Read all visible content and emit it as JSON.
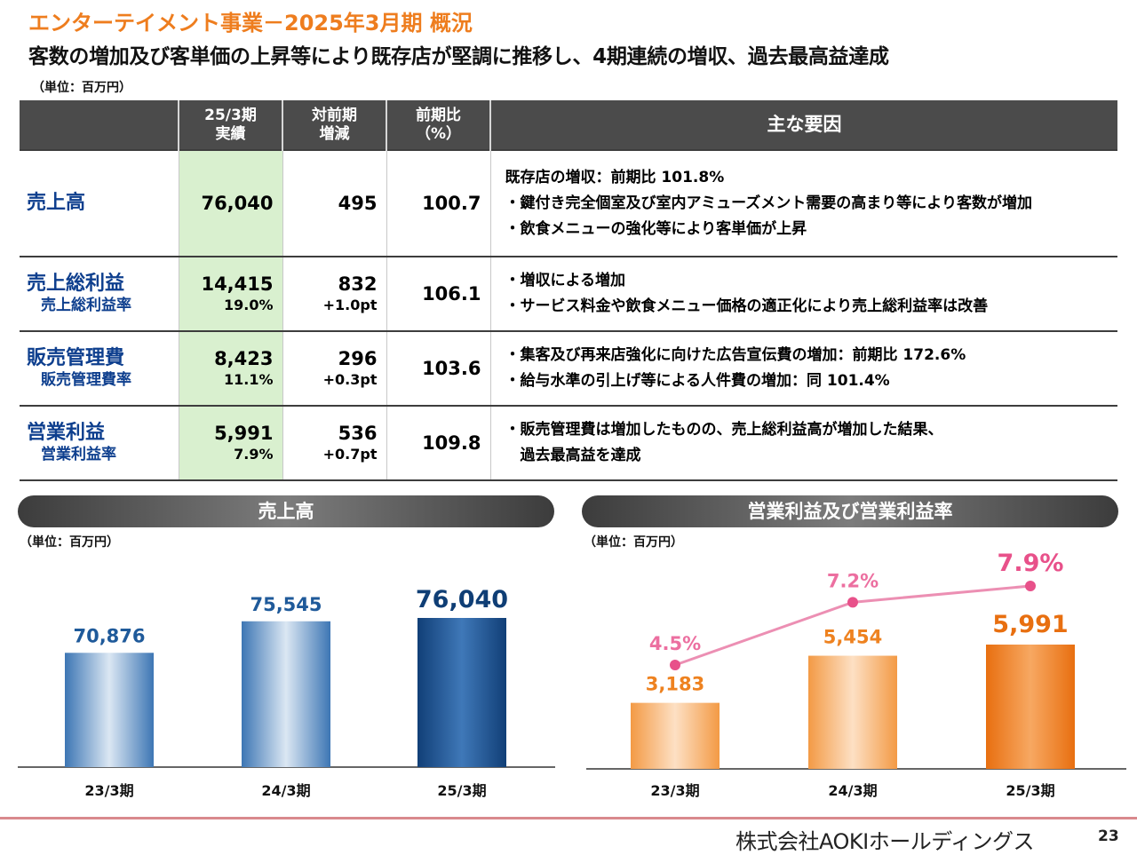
{
  "header": {
    "title": "エンターテイメント事業－2025年3月期 概況",
    "subtitle": "客数の増加及び客単価の上昇等により既存店が堅調に推移し、4期連続の増収、過去最高益達成"
  },
  "unit_label": "（単位：百万円）",
  "table": {
    "headers": {
      "actual": [
        "25/3期",
        "実績"
      ],
      "yoy_change": [
        "対前期",
        "増減"
      ],
      "yoy_ratio": [
        "前期比",
        "（%）"
      ],
      "reasons": "主な要因"
    },
    "rows": [
      {
        "item": "売上高",
        "sub_item": "",
        "actual": "76,040",
        "actual_sub": "",
        "change": "495",
        "change_sub": "",
        "ratio": "100.7",
        "reasons": [
          "既存店の増収：前期比 101.8%",
          "・鍵付き完全個室及び室内アミューズメント需要の高まり等により客数が増加",
          "・飲食メニューの強化等により客単価が上昇"
        ]
      },
      {
        "item": "売上総利益",
        "sub_item": "売上総利益率",
        "actual": "14,415",
        "actual_sub": "19.0%",
        "change": "832",
        "change_sub": "+1.0pt",
        "ratio": "106.1",
        "reasons": [
          "・増収による増加",
          "・サービス料金や飲食メニュー価格の適正化により売上総利益率は改善"
        ]
      },
      {
        "item": "販売管理費",
        "sub_item": "販売管理費率",
        "actual": "8,423",
        "actual_sub": "11.1%",
        "change": "296",
        "change_sub": "+0.3pt",
        "ratio": "103.6",
        "reasons": [
          "・集客及び再来店強化に向けた広告宣伝費の増加：前期比 172.6%",
          "・給与水準の引上げ等による人件費の増加：同 101.4%"
        ]
      },
      {
        "item": "営業利益",
        "sub_item": "営業利益率",
        "actual": "5,991",
        "actual_sub": "7.9%",
        "change": "536",
        "change_sub": "+0.7pt",
        "ratio": "109.8",
        "reasons": [
          "・販売管理費は増加したものの、売上総利益高が増加した結果、",
          "　過去最高益を達成"
        ]
      }
    ]
  },
  "chart_data": [
    {
      "type": "bar",
      "title": "売上高",
      "unit": "（単位：百万円）",
      "categories": [
        "23/3期",
        "24/3期",
        "25/3期"
      ],
      "values": [
        70876,
        75545,
        76040
      ],
      "value_labels": [
        "70,876",
        "75,545",
        "76,040"
      ],
      "colors": [
        "#3f78b5",
        "#3f78b5",
        "#0f3e75"
      ]
    },
    {
      "type": "bar",
      "title": "営業利益及び営業利益率",
      "unit": "（単位：百万円）",
      "categories": [
        "23/3期",
        "24/3期",
        "25/3期"
      ],
      "values": [
        3183,
        5454,
        5991
      ],
      "value_labels": [
        "3,183",
        "5,454",
        "5,991"
      ],
      "line_values": [
        4.5,
        7.2,
        7.9
      ],
      "line_labels": [
        "4.5%",
        "7.2%",
        "7.9%"
      ],
      "colors": {
        "bar": "#f49a47",
        "bar_latest": "#e86f10",
        "line": "#ec8fb3",
        "point": "#e8518a"
      }
    }
  ],
  "footer": {
    "company": "株式会社AOKIホールディングス",
    "page": "23"
  }
}
